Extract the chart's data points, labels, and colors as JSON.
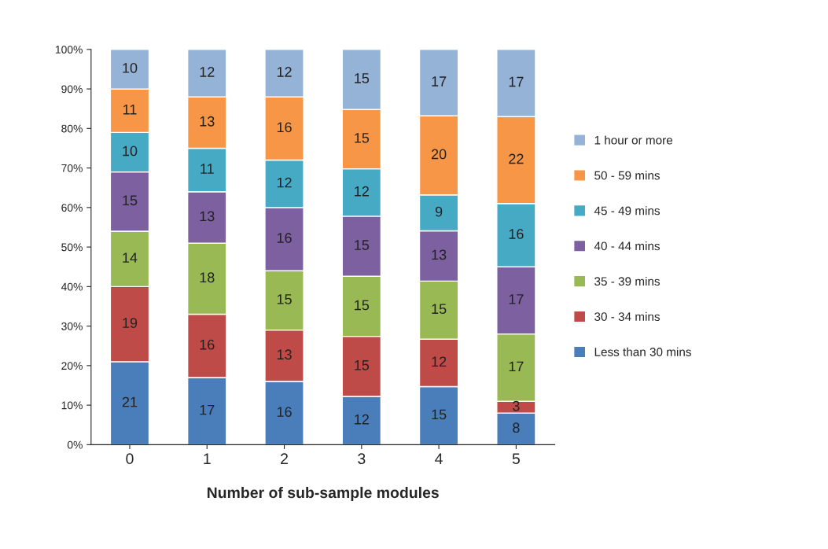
{
  "chart_data": {
    "type": "bar",
    "stacked": true,
    "xlabel": "Number of sub-sample modules",
    "categories": [
      "0",
      "1",
      "2",
      "3",
      "4",
      "5"
    ],
    "ylim": [
      0,
      100
    ],
    "yticks": [
      {
        "value": 0,
        "label": "0%"
      },
      {
        "value": 10,
        "label": "10%"
      },
      {
        "value": 20,
        "label": "20%"
      },
      {
        "value": 30,
        "label": "30%"
      },
      {
        "value": 40,
        "label": "40%"
      },
      {
        "value": 50,
        "label": "50%"
      },
      {
        "value": 60,
        "label": "60%"
      },
      {
        "value": 70,
        "label": "70%"
      },
      {
        "value": 80,
        "label": "80%"
      },
      {
        "value": 90,
        "label": "90%"
      },
      {
        "value": 100,
        "label": "100%"
      }
    ],
    "grid": false,
    "legend": "right",
    "series": [
      {
        "name": "Less than 30 mins",
        "color": "#4a7ebb",
        "values": [
          21,
          17,
          16,
          12.2,
          14.7,
          8
        ],
        "value_labels": [
          "21",
          "17",
          "16",
          "12",
          "15",
          "8"
        ]
      },
      {
        "name": "30 - 34 mins",
        "color": "#be4b48",
        "values": [
          19,
          16,
          13,
          15.2,
          12.0,
          3
        ],
        "value_labels": [
          "19",
          "16",
          "13",
          "15",
          "12",
          "3"
        ]
      },
      {
        "name": "35 - 39 mins",
        "color": "#98b954",
        "values": [
          14,
          18,
          15,
          15.2,
          14.7,
          17
        ],
        "value_labels": [
          "14",
          "18",
          "15",
          "15",
          "15",
          "17"
        ]
      },
      {
        "name": "40 - 44 mins",
        "color": "#7d60a0",
        "values": [
          15,
          13,
          16,
          15.2,
          12.7,
          17
        ],
        "value_labels": [
          "15",
          "13",
          "16",
          "15",
          "13",
          "17"
        ]
      },
      {
        "name": "45 - 49 mins",
        "color": "#46aac5",
        "values": [
          10,
          11,
          12,
          12.0,
          9.1,
          16
        ],
        "value_labels": [
          "10",
          "11",
          "12",
          "12",
          "9",
          "16"
        ]
      },
      {
        "name": "50 - 59 mins",
        "color": "#f79646",
        "values": [
          11,
          13,
          16,
          15.0,
          20.0,
          22
        ],
        "value_labels": [
          "11",
          "13",
          "16",
          "15",
          "20",
          "22"
        ]
      },
      {
        "name": "1 hour or more",
        "color": "#95b3d7",
        "values": [
          10,
          12,
          12,
          15.2,
          16.8,
          17
        ],
        "value_labels": [
          "10",
          "12",
          "12",
          "15",
          "17",
          "17"
        ]
      }
    ]
  }
}
